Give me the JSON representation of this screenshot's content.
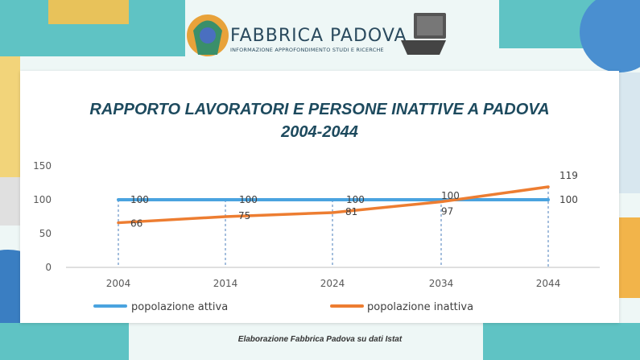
{
  "brand": {
    "name": "FABBRICA PADOVA",
    "tagline": "INFORMAZIONE APPROFONDIMENTO STUDI E RICERCHE"
  },
  "footer": {
    "note": "Elaborazione Fabbrica Padova su dati Istat"
  },
  "colors": {
    "attiva": "#4aa3df",
    "inattiva": "#ed7d31",
    "title": "#1d4a5e",
    "axis": "#595959"
  },
  "chart_data": {
    "type": "line",
    "title_lines": [
      "RAPPORTO LAVORATORI E PERSONE INATTIVE A PADOVA",
      "2004-2044"
    ],
    "categories": [
      "2004",
      "2014",
      "2024",
      "2034",
      "2044"
    ],
    "yticks": [
      "0",
      "50",
      "100",
      "150"
    ],
    "ylim": [
      0,
      150
    ],
    "gridlines": false,
    "legend_position": "bottom",
    "series": [
      {
        "name": "popolazione attiva",
        "values": [
          100,
          100,
          100,
          100,
          100
        ],
        "labels": [
          "100",
          "100",
          "100",
          "100",
          "100"
        ]
      },
      {
        "name": "popolazione inattiva",
        "values": [
          66,
          75,
          81,
          97,
          119
        ],
        "labels": [
          "66",
          "75",
          "81",
          "97",
          "119"
        ]
      }
    ]
  }
}
